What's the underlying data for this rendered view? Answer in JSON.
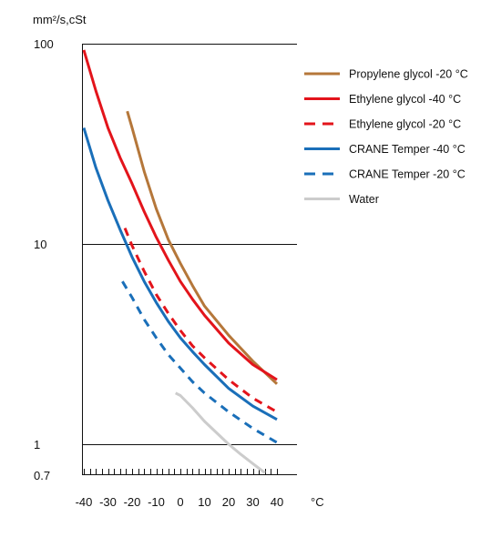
{
  "chart_data": {
    "type": "line",
    "title": "",
    "ylabel": "mm²/s,cSt",
    "xlabel": "°C",
    "yscale": "log",
    "ylim": [
      0.7,
      100
    ],
    "xlim": [
      -44,
      44
    ],
    "grid_y": [
      1,
      10,
      100
    ],
    "y_ticks": [
      "100",
      "10",
      "1",
      "0.7"
    ],
    "y_tick_values": [
      100,
      10,
      1,
      0.7
    ],
    "x_ticks": [
      "-40",
      "-30",
      "-20",
      "-10",
      "0",
      "10",
      "20",
      "30",
      "40"
    ],
    "x_tick_values": [
      -40,
      -30,
      -20,
      -10,
      0,
      10,
      20,
      30,
      40
    ],
    "legend_position": "right",
    "series": [
      {
        "name": "Propylene glycol -20 °C",
        "color": "#b5773a",
        "style": "solid",
        "x": [
          -22,
          -20,
          -15,
          -10,
          -5,
          0,
          5,
          10,
          20,
          30,
          40
        ],
        "y": [
          46,
          38,
          23,
          15,
          10.5,
          8,
          6.2,
          4.9,
          3.5,
          2.6,
          2.0
        ]
      },
      {
        "name": "Ethylene glycol -40 °C",
        "color": "#e3141b",
        "style": "solid",
        "x": [
          -40,
          -35,
          -30,
          -25,
          -20,
          -15,
          -10,
          -5,
          0,
          5,
          10,
          20,
          30,
          40
        ],
        "y": [
          93,
          58,
          38,
          27,
          20,
          14.5,
          10.8,
          8.3,
          6.5,
          5.3,
          4.4,
          3.2,
          2.5,
          2.1
        ]
      },
      {
        "name": "Ethylene glycol -20 °C",
        "color": "#e3141b",
        "style": "dashed",
        "x": [
          -23,
          -20,
          -15,
          -10,
          -5,
          0,
          5,
          10,
          20,
          30,
          40
        ],
        "y": [
          12,
          9.8,
          7.3,
          5.6,
          4.5,
          3.7,
          3.1,
          2.7,
          2.1,
          1.7,
          1.45
        ]
      },
      {
        "name": "CRANE Temper -40 °C",
        "color": "#1a6fb9",
        "style": "solid",
        "x": [
          -40,
          -35,
          -30,
          -25,
          -20,
          -15,
          -10,
          -5,
          0,
          5,
          10,
          20,
          30,
          40
        ],
        "y": [
          38,
          24,
          16.5,
          11.8,
          8.6,
          6.5,
          5.1,
          4.1,
          3.4,
          2.9,
          2.5,
          1.9,
          1.55,
          1.33
        ]
      },
      {
        "name": "CRANE Temper -20 °C",
        "color": "#1a6fb9",
        "style": "dashed",
        "x": [
          -24,
          -20,
          -15,
          -10,
          -5,
          0,
          5,
          10,
          20,
          30,
          40
        ],
        "y": [
          6.5,
          5.4,
          4.2,
          3.4,
          2.8,
          2.4,
          2.05,
          1.8,
          1.45,
          1.2,
          1.02
        ]
      },
      {
        "name": "Water",
        "color": "#cccccc",
        "style": "solid",
        "x": [
          -2,
          0,
          5,
          10,
          15,
          20,
          25,
          30,
          35
        ],
        "y": [
          1.8,
          1.75,
          1.52,
          1.3,
          1.14,
          1.0,
          0.89,
          0.8,
          0.72
        ]
      }
    ]
  }
}
